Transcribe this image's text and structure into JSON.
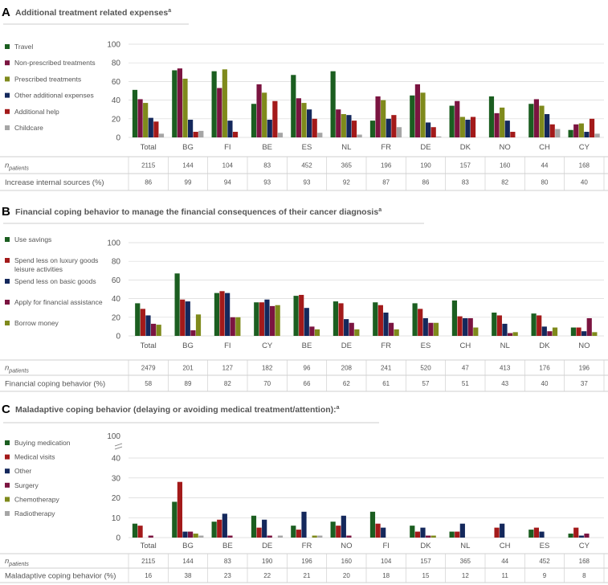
{
  "colors": {
    "dark_green": "#1b5e20",
    "maroon": "#7b1440",
    "olive": "#7f8a1c",
    "navy": "#14285c",
    "red": "#a31a1a",
    "gray": "#a6a6a6",
    "heading": "#555555",
    "grid": "#d9d9d9",
    "text": "#555555"
  },
  "chart_data": [
    {
      "type": "bar",
      "panel_letter": "A",
      "title": "Additional treatment related expenses",
      "title_superscript": "a",
      "ylim": [
        0,
        100
      ],
      "yticks": [
        0,
        20,
        40,
        60,
        80,
        100
      ],
      "categories": [
        "Total",
        "BG",
        "FI",
        "BE",
        "ES",
        "NL",
        "FR",
        "DE",
        "DK",
        "NO",
        "CH",
        "CY"
      ],
      "series": [
        {
          "name": "Travel",
          "color": "#1b5e20",
          "values": [
            51,
            72,
            71,
            36,
            67,
            71,
            18,
            45,
            34,
            44,
            36,
            8
          ]
        },
        {
          "name": "Non-prescribed treatments",
          "color": "#7b1440",
          "values": [
            41,
            74,
            53,
            57,
            42,
            30,
            44,
            57,
            39,
            26,
            41,
            14
          ]
        },
        {
          "name": "Prescribed treatments",
          "color": "#7f8a1c",
          "values": [
            37,
            63,
            73,
            48,
            37,
            25,
            40,
            48,
            22,
            32,
            34,
            15
          ]
        },
        {
          "name": "Other additional expenses",
          "color": "#14285c",
          "values": [
            21,
            19,
            18,
            19,
            30,
            24,
            20,
            16,
            19,
            18,
            25,
            6
          ]
        },
        {
          "name": "Additional help",
          "color": "#a31a1a",
          "values": [
            17,
            6,
            6,
            39,
            20,
            18,
            24,
            11,
            22,
            6,
            14,
            20
          ]
        },
        {
          "name": "Childcare",
          "color": "#a6a6a6",
          "values": [
            4,
            7,
            0,
            5,
            5,
            3,
            11,
            1,
            0,
            0,
            9,
            4
          ]
        }
      ],
      "table": {
        "n_label": "n",
        "n_subscript": "patients",
        "n_values": [
          "2115",
          "144",
          "104",
          "83",
          "452",
          "365",
          "196",
          "190",
          "157",
          "160",
          "44",
          "168"
        ],
        "row_label": "Increase internal sources (%)",
        "row_values": [
          "86",
          "99",
          "94",
          "93",
          "93",
          "92",
          "87",
          "86",
          "83",
          "82",
          "80",
          "40"
        ]
      }
    },
    {
      "type": "bar",
      "panel_letter": "B",
      "title": "Financial coping behavior to manage the financial consequences of their cancer diagnosis",
      "title_superscript": "a",
      "ylim": [
        0,
        100
      ],
      "yticks": [
        0,
        20,
        40,
        60,
        80,
        100
      ],
      "categories": [
        "Total",
        "BG",
        "FI",
        "CY",
        "BE",
        "DE",
        "FR",
        "ES",
        "CH",
        "NL",
        "DK",
        "NO"
      ],
      "series": [
        {
          "name": "Use savings",
          "color": "#1b5e20",
          "values": [
            35,
            67,
            46,
            36,
            43,
            37,
            36,
            35,
            38,
            25,
            24,
            9
          ]
        },
        {
          "name": "Spend less on luxury goods leisure activities",
          "color": "#a31a1a",
          "values": [
            29,
            39,
            48,
            36,
            44,
            35,
            33,
            29,
            21,
            22,
            22,
            9
          ]
        },
        {
          "name": "Spend less on basic goods",
          "color": "#14285c",
          "values": [
            22,
            37,
            46,
            39,
            30,
            18,
            25,
            19,
            19,
            13,
            10,
            5
          ]
        },
        {
          "name": "Apply for financial assistance",
          "color": "#7b1440",
          "values": [
            13,
            6,
            20,
            32,
            10,
            14,
            14,
            14,
            19,
            3,
            5,
            19
          ]
        },
        {
          "name": "Borrow money",
          "color": "#7f8a1c",
          "values": [
            12,
            23,
            20,
            33,
            7,
            7,
            7,
            14,
            9,
            4,
            9,
            4
          ]
        }
      ],
      "table": {
        "n_label": "n",
        "n_subscript": "patients",
        "n_values": [
          "2479",
          "201",
          "127",
          "182",
          "96",
          "208",
          "241",
          "520",
          "47",
          "413",
          "176",
          "196"
        ],
        "row_label": "Financial coping behavior (%)",
        "row_values": [
          "58",
          "89",
          "82",
          "70",
          "66",
          "62",
          "61",
          "57",
          "51",
          "43",
          "40",
          "37"
        ]
      }
    },
    {
      "type": "bar",
      "panel_letter": "C",
      "title": "Maladaptive coping behavior (delaying or avoiding medical treatment/attention):",
      "title_superscript": "a",
      "ylim": [
        0,
        40
      ],
      "yticks": [
        0,
        10,
        20,
        30,
        40
      ],
      "axis_break_tick": "100",
      "categories": [
        "Total",
        "BG",
        "BE",
        "DE",
        "FR",
        "NO",
        "FI",
        "DK",
        "NL",
        "CH",
        "ES",
        "CY"
      ],
      "series": [
        {
          "name": "Buying medication",
          "color": "#1b5e20",
          "values": [
            7,
            18,
            8,
            11,
            6,
            8,
            13,
            6,
            3,
            0,
            4,
            2
          ]
        },
        {
          "name": "Medical visits",
          "color": "#a31a1a",
          "values": [
            6,
            28,
            9,
            5,
            4,
            6,
            7,
            3,
            3,
            5,
            5,
            5
          ]
        },
        {
          "name": "Other",
          "color": "#14285c",
          "values": [
            0,
            3,
            12,
            9,
            13,
            11,
            5,
            5,
            7,
            7,
            3,
            1
          ]
        },
        {
          "name": "Surgery",
          "color": "#7b1440",
          "values": [
            1,
            3,
            1,
            1,
            0,
            1,
            0,
            1,
            0,
            0,
            0,
            2
          ]
        },
        {
          "name": "Chemotherapy",
          "color": "#7f8a1c",
          "values": [
            0,
            2,
            0,
            0,
            1,
            0,
            0,
            1,
            0,
            0,
            0,
            0
          ]
        },
        {
          "name": "Radiotherapy",
          "color": "#a6a6a6",
          "values": [
            0,
            1,
            0,
            1,
            1,
            0,
            0,
            0,
            0,
            0,
            0,
            0
          ]
        }
      ],
      "table": {
        "n_label": "n",
        "n_subscript": "patients",
        "n_values": [
          "2115",
          "144",
          "83",
          "190",
          "196",
          "160",
          "104",
          "157",
          "365",
          "44",
          "452",
          "168"
        ],
        "row_label": "Maladaptive coping behavior (%)",
        "row_values": [
          "16",
          "38",
          "23",
          "22",
          "21",
          "20",
          "18",
          "15",
          "12",
          "11",
          "9",
          "8"
        ]
      }
    }
  ]
}
